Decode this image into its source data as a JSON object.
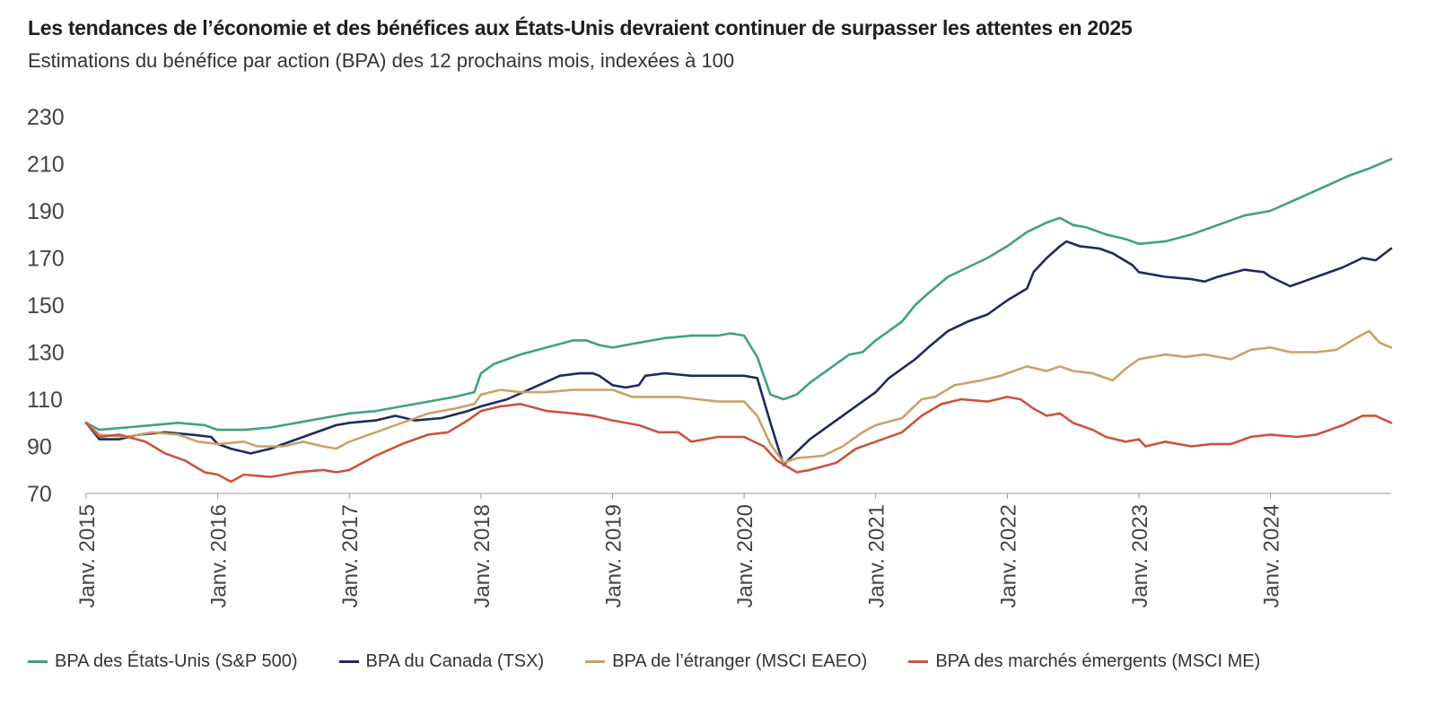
{
  "chart_data": {
    "type": "line",
    "title": "Les tendances de l’économie et des bénéfices aux États-Unis devraient continuer de surpasser les attentes en 2025",
    "subtitle": "Estimations du bénéfice par action (BPA) des 12 prochains mois, indexées à 100",
    "xlabel": "",
    "ylabel": "",
    "ylim": [
      70,
      230
    ],
    "yticks": [
      70,
      90,
      110,
      130,
      150,
      170,
      190,
      210,
      230
    ],
    "xlim": [
      2015.0,
      2024.917
    ],
    "x_ticks": [
      {
        "x": 2015,
        "label": "Janv. 2015"
      },
      {
        "x": 2016,
        "label": "Janv. 2016"
      },
      {
        "x": 2017,
        "label": "Janv. 2017"
      },
      {
        "x": 2018,
        "label": "Janv. 2018"
      },
      {
        "x": 2019,
        "label": "Janv. 2019"
      },
      {
        "x": 2020,
        "label": "Janv. 2020"
      },
      {
        "x": 2021,
        "label": "Janv. 2021"
      },
      {
        "x": 2022,
        "label": "Janv. 2022"
      },
      {
        "x": 2023,
        "label": "Janv. 2023"
      },
      {
        "x": 2024,
        "label": "Janv. 2024"
      }
    ],
    "grid": false,
    "legend_position": "bottom",
    "series": [
      {
        "name": "BPA des États-Unis (S&P 500)",
        "color": "#3fa37f",
        "points": [
          [
            2015.0,
            100
          ],
          [
            2015.1,
            97
          ],
          [
            2015.3,
            98
          ],
          [
            2015.5,
            99
          ],
          [
            2015.7,
            100
          ],
          [
            2015.9,
            99
          ],
          [
            2016.0,
            97
          ],
          [
            2016.2,
            97
          ],
          [
            2016.4,
            98
          ],
          [
            2016.6,
            100
          ],
          [
            2016.8,
            102
          ],
          [
            2017.0,
            104
          ],
          [
            2017.2,
            105
          ],
          [
            2017.4,
            107
          ],
          [
            2017.6,
            109
          ],
          [
            2017.8,
            111
          ],
          [
            2017.95,
            113
          ],
          [
            2018.0,
            121
          ],
          [
            2018.1,
            125
          ],
          [
            2018.3,
            129
          ],
          [
            2018.5,
            132
          ],
          [
            2018.7,
            135
          ],
          [
            2018.8,
            135
          ],
          [
            2018.9,
            133
          ],
          [
            2019.0,
            132
          ],
          [
            2019.2,
            134
          ],
          [
            2019.4,
            136
          ],
          [
            2019.6,
            137
          ],
          [
            2019.8,
            137
          ],
          [
            2019.9,
            138
          ],
          [
            2020.0,
            137
          ],
          [
            2020.1,
            128
          ],
          [
            2020.2,
            112
          ],
          [
            2020.3,
            110
          ],
          [
            2020.4,
            112
          ],
          [
            2020.5,
            117
          ],
          [
            2020.6,
            121
          ],
          [
            2020.7,
            125
          ],
          [
            2020.8,
            129
          ],
          [
            2020.9,
            130
          ],
          [
            2021.0,
            135
          ],
          [
            2021.2,
            143
          ],
          [
            2021.3,
            150
          ],
          [
            2021.4,
            155
          ],
          [
            2021.55,
            162
          ],
          [
            2021.7,
            166
          ],
          [
            2021.85,
            170
          ],
          [
            2022.0,
            175
          ],
          [
            2022.15,
            181
          ],
          [
            2022.3,
            185
          ],
          [
            2022.4,
            187
          ],
          [
            2022.5,
            184
          ],
          [
            2022.6,
            183
          ],
          [
            2022.75,
            180
          ],
          [
            2022.9,
            178
          ],
          [
            2023.0,
            176
          ],
          [
            2023.2,
            177
          ],
          [
            2023.4,
            180
          ],
          [
            2023.6,
            184
          ],
          [
            2023.8,
            188
          ],
          [
            2024.0,
            190
          ],
          [
            2024.2,
            195
          ],
          [
            2024.4,
            200
          ],
          [
            2024.6,
            205
          ],
          [
            2024.75,
            208
          ],
          [
            2024.917,
            212
          ]
        ]
      },
      {
        "name": "BPA du Canada (TSX)",
        "color": "#1f2a5c",
        "points": [
          [
            2015.0,
            100
          ],
          [
            2015.1,
            93
          ],
          [
            2015.25,
            93
          ],
          [
            2015.4,
            95
          ],
          [
            2015.6,
            96
          ],
          [
            2015.8,
            95
          ],
          [
            2015.95,
            94
          ],
          [
            2016.0,
            91
          ],
          [
            2016.1,
            89
          ],
          [
            2016.25,
            87
          ],
          [
            2016.4,
            89
          ],
          [
            2016.5,
            91
          ],
          [
            2016.7,
            95
          ],
          [
            2016.9,
            99
          ],
          [
            2017.0,
            100
          ],
          [
            2017.2,
            101
          ],
          [
            2017.35,
            103
          ],
          [
            2017.5,
            101
          ],
          [
            2017.7,
            102
          ],
          [
            2017.9,
            105
          ],
          [
            2018.0,
            107
          ],
          [
            2018.2,
            110
          ],
          [
            2018.4,
            115
          ],
          [
            2018.6,
            120
          ],
          [
            2018.75,
            121
          ],
          [
            2018.85,
            121
          ],
          [
            2018.9,
            120
          ],
          [
            2019.0,
            116
          ],
          [
            2019.1,
            115
          ],
          [
            2019.2,
            116
          ],
          [
            2019.25,
            120
          ],
          [
            2019.4,
            121
          ],
          [
            2019.6,
            120
          ],
          [
            2019.8,
            120
          ],
          [
            2020.0,
            120
          ],
          [
            2020.1,
            119
          ],
          [
            2020.2,
            100
          ],
          [
            2020.3,
            82
          ],
          [
            2020.35,
            85
          ],
          [
            2020.5,
            93
          ],
          [
            2020.7,
            101
          ],
          [
            2020.9,
            109
          ],
          [
            2021.0,
            113
          ],
          [
            2021.1,
            119
          ],
          [
            2021.3,
            127
          ],
          [
            2021.4,
            132
          ],
          [
            2021.55,
            139
          ],
          [
            2021.7,
            143
          ],
          [
            2021.85,
            146
          ],
          [
            2022.0,
            152
          ],
          [
            2022.15,
            157
          ],
          [
            2022.2,
            164
          ],
          [
            2022.3,
            170
          ],
          [
            2022.4,
            175
          ],
          [
            2022.45,
            177
          ],
          [
            2022.55,
            175
          ],
          [
            2022.7,
            174
          ],
          [
            2022.8,
            172
          ],
          [
            2022.95,
            167
          ],
          [
            2023.0,
            164
          ],
          [
            2023.2,
            162
          ],
          [
            2023.4,
            161
          ],
          [
            2023.5,
            160
          ],
          [
            2023.6,
            162
          ],
          [
            2023.8,
            165
          ],
          [
            2023.95,
            164
          ],
          [
            2024.0,
            162
          ],
          [
            2024.15,
            158
          ],
          [
            2024.25,
            160
          ],
          [
            2024.4,
            163
          ],
          [
            2024.55,
            166
          ],
          [
            2024.7,
            170
          ],
          [
            2024.8,
            169
          ],
          [
            2024.917,
            174
          ]
        ]
      },
      {
        "name": "BPA de l’étranger (MSCI EAEO)",
        "color": "#c9a26a",
        "points": [
          [
            2015.0,
            100
          ],
          [
            2015.1,
            95
          ],
          [
            2015.3,
            94
          ],
          [
            2015.5,
            96
          ],
          [
            2015.7,
            95
          ],
          [
            2015.85,
            92
          ],
          [
            2016.0,
            91
          ],
          [
            2016.2,
            92
          ],
          [
            2016.3,
            90
          ],
          [
            2016.5,
            90
          ],
          [
            2016.65,
            92
          ],
          [
            2016.8,
            90
          ],
          [
            2016.9,
            89
          ],
          [
            2017.0,
            92
          ],
          [
            2017.2,
            96
          ],
          [
            2017.4,
            100
          ],
          [
            2017.6,
            104
          ],
          [
            2017.8,
            106
          ],
          [
            2017.95,
            108
          ],
          [
            2018.0,
            112
          ],
          [
            2018.15,
            114
          ],
          [
            2018.3,
            113
          ],
          [
            2018.5,
            113
          ],
          [
            2018.7,
            114
          ],
          [
            2018.9,
            114
          ],
          [
            2019.0,
            114
          ],
          [
            2019.15,
            111
          ],
          [
            2019.35,
            111
          ],
          [
            2019.5,
            111
          ],
          [
            2019.65,
            110
          ],
          [
            2019.8,
            109
          ],
          [
            2019.9,
            109
          ],
          [
            2020.0,
            109
          ],
          [
            2020.1,
            103
          ],
          [
            2020.2,
            91
          ],
          [
            2020.3,
            83
          ],
          [
            2020.4,
            85
          ],
          [
            2020.6,
            86
          ],
          [
            2020.75,
            90
          ],
          [
            2020.9,
            96
          ],
          [
            2021.0,
            99
          ],
          [
            2021.2,
            102
          ],
          [
            2021.35,
            110
          ],
          [
            2021.45,
            111
          ],
          [
            2021.6,
            116
          ],
          [
            2021.8,
            118
          ],
          [
            2021.95,
            120
          ],
          [
            2022.0,
            121
          ],
          [
            2022.15,
            124
          ],
          [
            2022.3,
            122
          ],
          [
            2022.4,
            124
          ],
          [
            2022.5,
            122
          ],
          [
            2022.65,
            121
          ],
          [
            2022.8,
            118
          ],
          [
            2022.9,
            123
          ],
          [
            2023.0,
            127
          ],
          [
            2023.2,
            129
          ],
          [
            2023.35,
            128
          ],
          [
            2023.5,
            129
          ],
          [
            2023.7,
            127
          ],
          [
            2023.85,
            131
          ],
          [
            2024.0,
            132
          ],
          [
            2024.15,
            130
          ],
          [
            2024.35,
            130
          ],
          [
            2024.5,
            131
          ],
          [
            2024.65,
            136
          ],
          [
            2024.75,
            139
          ],
          [
            2024.83,
            134
          ],
          [
            2024.917,
            132
          ]
        ]
      },
      {
        "name": "BPA des marchés émergents (MSCI ME)",
        "color": "#c8553d",
        "points": [
          [
            2015.0,
            100
          ],
          [
            2015.1,
            94
          ],
          [
            2015.25,
            95
          ],
          [
            2015.45,
            92
          ],
          [
            2015.6,
            87
          ],
          [
            2015.75,
            84
          ],
          [
            2015.9,
            79
          ],
          [
            2016.0,
            78
          ],
          [
            2016.1,
            75
          ],
          [
            2016.2,
            78
          ],
          [
            2016.4,
            77
          ],
          [
            2016.6,
            79
          ],
          [
            2016.8,
            80
          ],
          [
            2016.9,
            79
          ],
          [
            2017.0,
            80
          ],
          [
            2017.2,
            86
          ],
          [
            2017.4,
            91
          ],
          [
            2017.6,
            95
          ],
          [
            2017.75,
            96
          ],
          [
            2017.9,
            101
          ],
          [
            2018.0,
            105
          ],
          [
            2018.15,
            107
          ],
          [
            2018.3,
            108
          ],
          [
            2018.5,
            105
          ],
          [
            2018.7,
            104
          ],
          [
            2018.85,
            103
          ],
          [
            2019.0,
            101
          ],
          [
            2019.2,
            99
          ],
          [
            2019.35,
            96
          ],
          [
            2019.5,
            96
          ],
          [
            2019.6,
            92
          ],
          [
            2019.8,
            94
          ],
          [
            2020.0,
            94
          ],
          [
            2020.15,
            90
          ],
          [
            2020.25,
            84
          ],
          [
            2020.4,
            79
          ],
          [
            2020.5,
            80
          ],
          [
            2020.7,
            83
          ],
          [
            2020.85,
            89
          ],
          [
            2021.0,
            92
          ],
          [
            2021.2,
            96
          ],
          [
            2021.35,
            103
          ],
          [
            2021.5,
            108
          ],
          [
            2021.65,
            110
          ],
          [
            2021.85,
            109
          ],
          [
            2022.0,
            111
          ],
          [
            2022.1,
            110
          ],
          [
            2022.2,
            106
          ],
          [
            2022.3,
            103
          ],
          [
            2022.4,
            104
          ],
          [
            2022.5,
            100
          ],
          [
            2022.65,
            97
          ],
          [
            2022.75,
            94
          ],
          [
            2022.9,
            92
          ],
          [
            2023.0,
            93
          ],
          [
            2023.05,
            90
          ],
          [
            2023.2,
            92
          ],
          [
            2023.4,
            90
          ],
          [
            2023.55,
            91
          ],
          [
            2023.7,
            91
          ],
          [
            2023.85,
            94
          ],
          [
            2024.0,
            95
          ],
          [
            2024.2,
            94
          ],
          [
            2024.35,
            95
          ],
          [
            2024.55,
            99
          ],
          [
            2024.7,
            103
          ],
          [
            2024.8,
            103
          ],
          [
            2024.917,
            100
          ]
        ]
      }
    ]
  }
}
